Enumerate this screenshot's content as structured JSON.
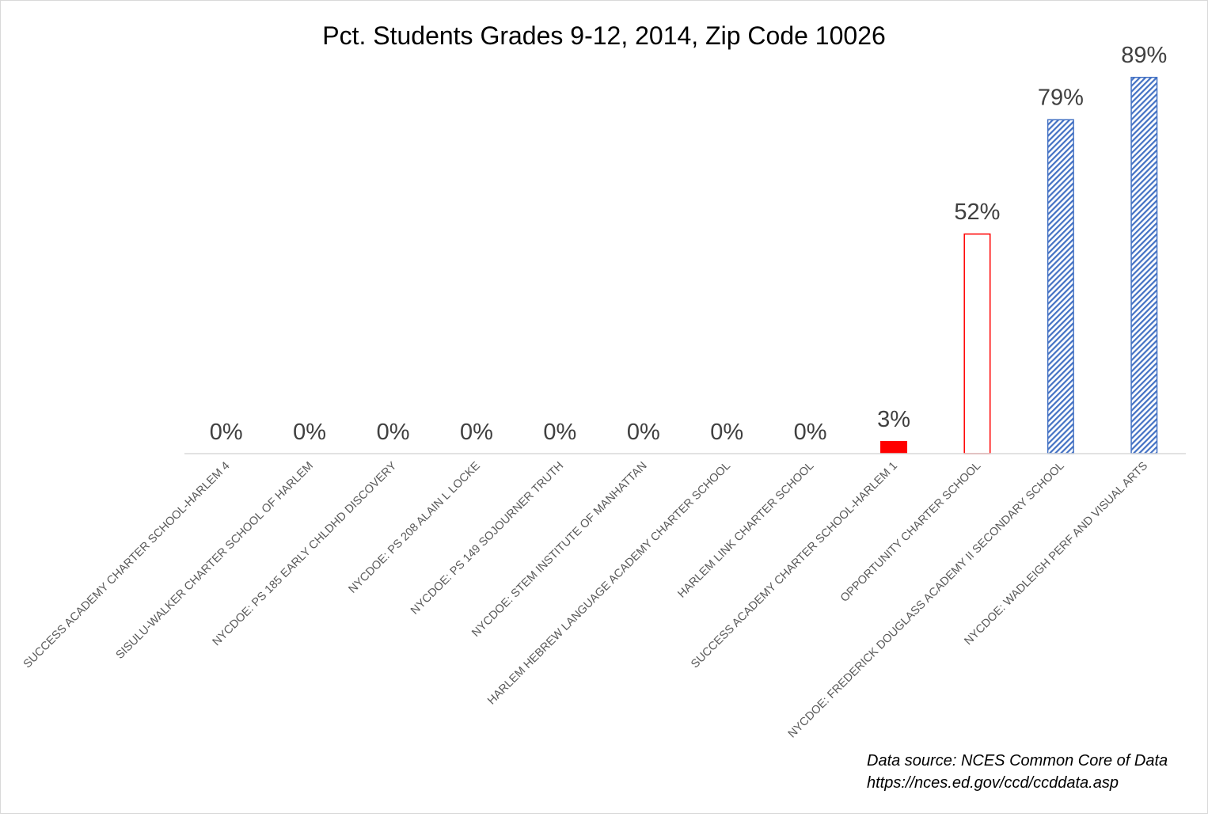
{
  "chart_data": {
    "type": "bar",
    "title": "Pct. Students Grades 9-12, 2014, Zip Code 10026",
    "xlabel": "",
    "ylabel": "",
    "ylim": [
      0,
      100
    ],
    "grid": false,
    "legend": "none",
    "categories": [
      "SUCCESS ACADEMY CHARTER SCHOOL-HARLEM 4",
      "SISULU-WALKER CHARTER SCHOOL OF HARLEM",
      "NYCDOE: PS 185 EARLY CHLDHD DISCOVERY",
      "NYCDOE: PS 208 ALAIN L LOCKE",
      "NYCDOE: PS 149 SOJOURNER TRUTH",
      "NYCDOE: STEM INSTITUTE OF MANHATTAN",
      "HARLEM HEBREW LANGUAGE ACADEMY CHARTER SCHOOL",
      "HARLEM LINK CHARTER SCHOOL",
      "SUCCESS ACADEMY CHARTER SCHOOL-HARLEM 1",
      "OPPORTUNITY CHARTER SCHOOL",
      "NYCDOE: FREDERICK DOUGLASS ACADEMY II SECONDARY SCHOOL",
      "NYCDOE: WADLEIGH PERF AND VISUAL ARTS"
    ],
    "values": [
      0,
      0,
      0,
      0,
      0,
      0,
      0,
      0,
      3,
      52,
      79,
      89
    ],
    "data_labels": [
      "0%",
      "0%",
      "0%",
      "0%",
      "0%",
      "0%",
      "0%",
      "0%",
      "3%",
      "52%",
      "79%",
      "89%"
    ],
    "bar_styles": [
      "solid-red",
      "solid-red",
      "solid-red",
      "solid-red",
      "solid-red",
      "solid-red",
      "solid-red",
      "solid-red",
      "solid-red",
      "outline-red",
      "hatched-blue",
      "hatched-blue"
    ],
    "colors": {
      "red": "#ff0000",
      "blue": "#4472c4",
      "axis": "#d9d9d9"
    }
  },
  "source": {
    "line1": "Data source: NCES Common Core of Data",
    "line2": "https://nces.ed.gov/ccd/ccddata.asp"
  }
}
